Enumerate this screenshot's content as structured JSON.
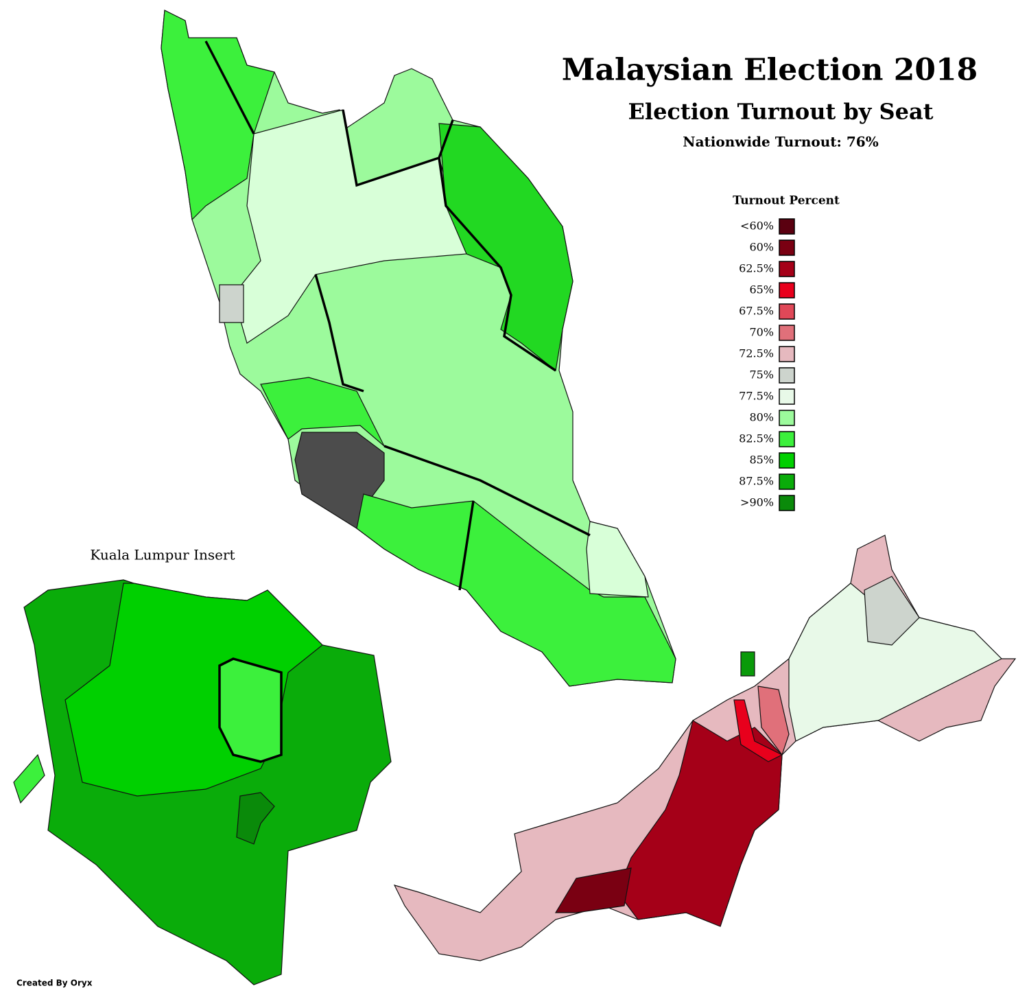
{
  "header": {
    "title": "Malaysian Election 2018",
    "subtitle": "Election Turnout by Seat",
    "note": "Nationwide Turnout: 76%"
  },
  "legend": {
    "title": "Turnout Percent",
    "items": [
      {
        "label": "<60%",
        "color": "#5a0010"
      },
      {
        "label": "60%",
        "color": "#7a0012"
      },
      {
        "label": "62.5%",
        "color": "#a50018"
      },
      {
        "label": "65%",
        "color": "#e8001c"
      },
      {
        "label": "67.5%",
        "color": "#e04858"
      },
      {
        "label": "70%",
        "color": "#e0707a"
      },
      {
        "label": "72.5%",
        "color": "#e6b9bf"
      },
      {
        "label": "75%",
        "color": "#cdd4cd"
      },
      {
        "label": "77.5%",
        "color": "#e8f9e8"
      },
      {
        "label": "80%",
        "color": "#9cfa9c"
      },
      {
        "label": "82.5%",
        "color": "#3cf03c"
      },
      {
        "label": "85%",
        "color": "#00d000"
      },
      {
        "label": "87.5%",
        "color": "#0aac0a"
      },
      {
        "label": ">90%",
        "color": "#0a8a0a"
      }
    ]
  },
  "insert_label": "Kuala Lumpur Insert",
  "credit": "Created By Oryx"
}
